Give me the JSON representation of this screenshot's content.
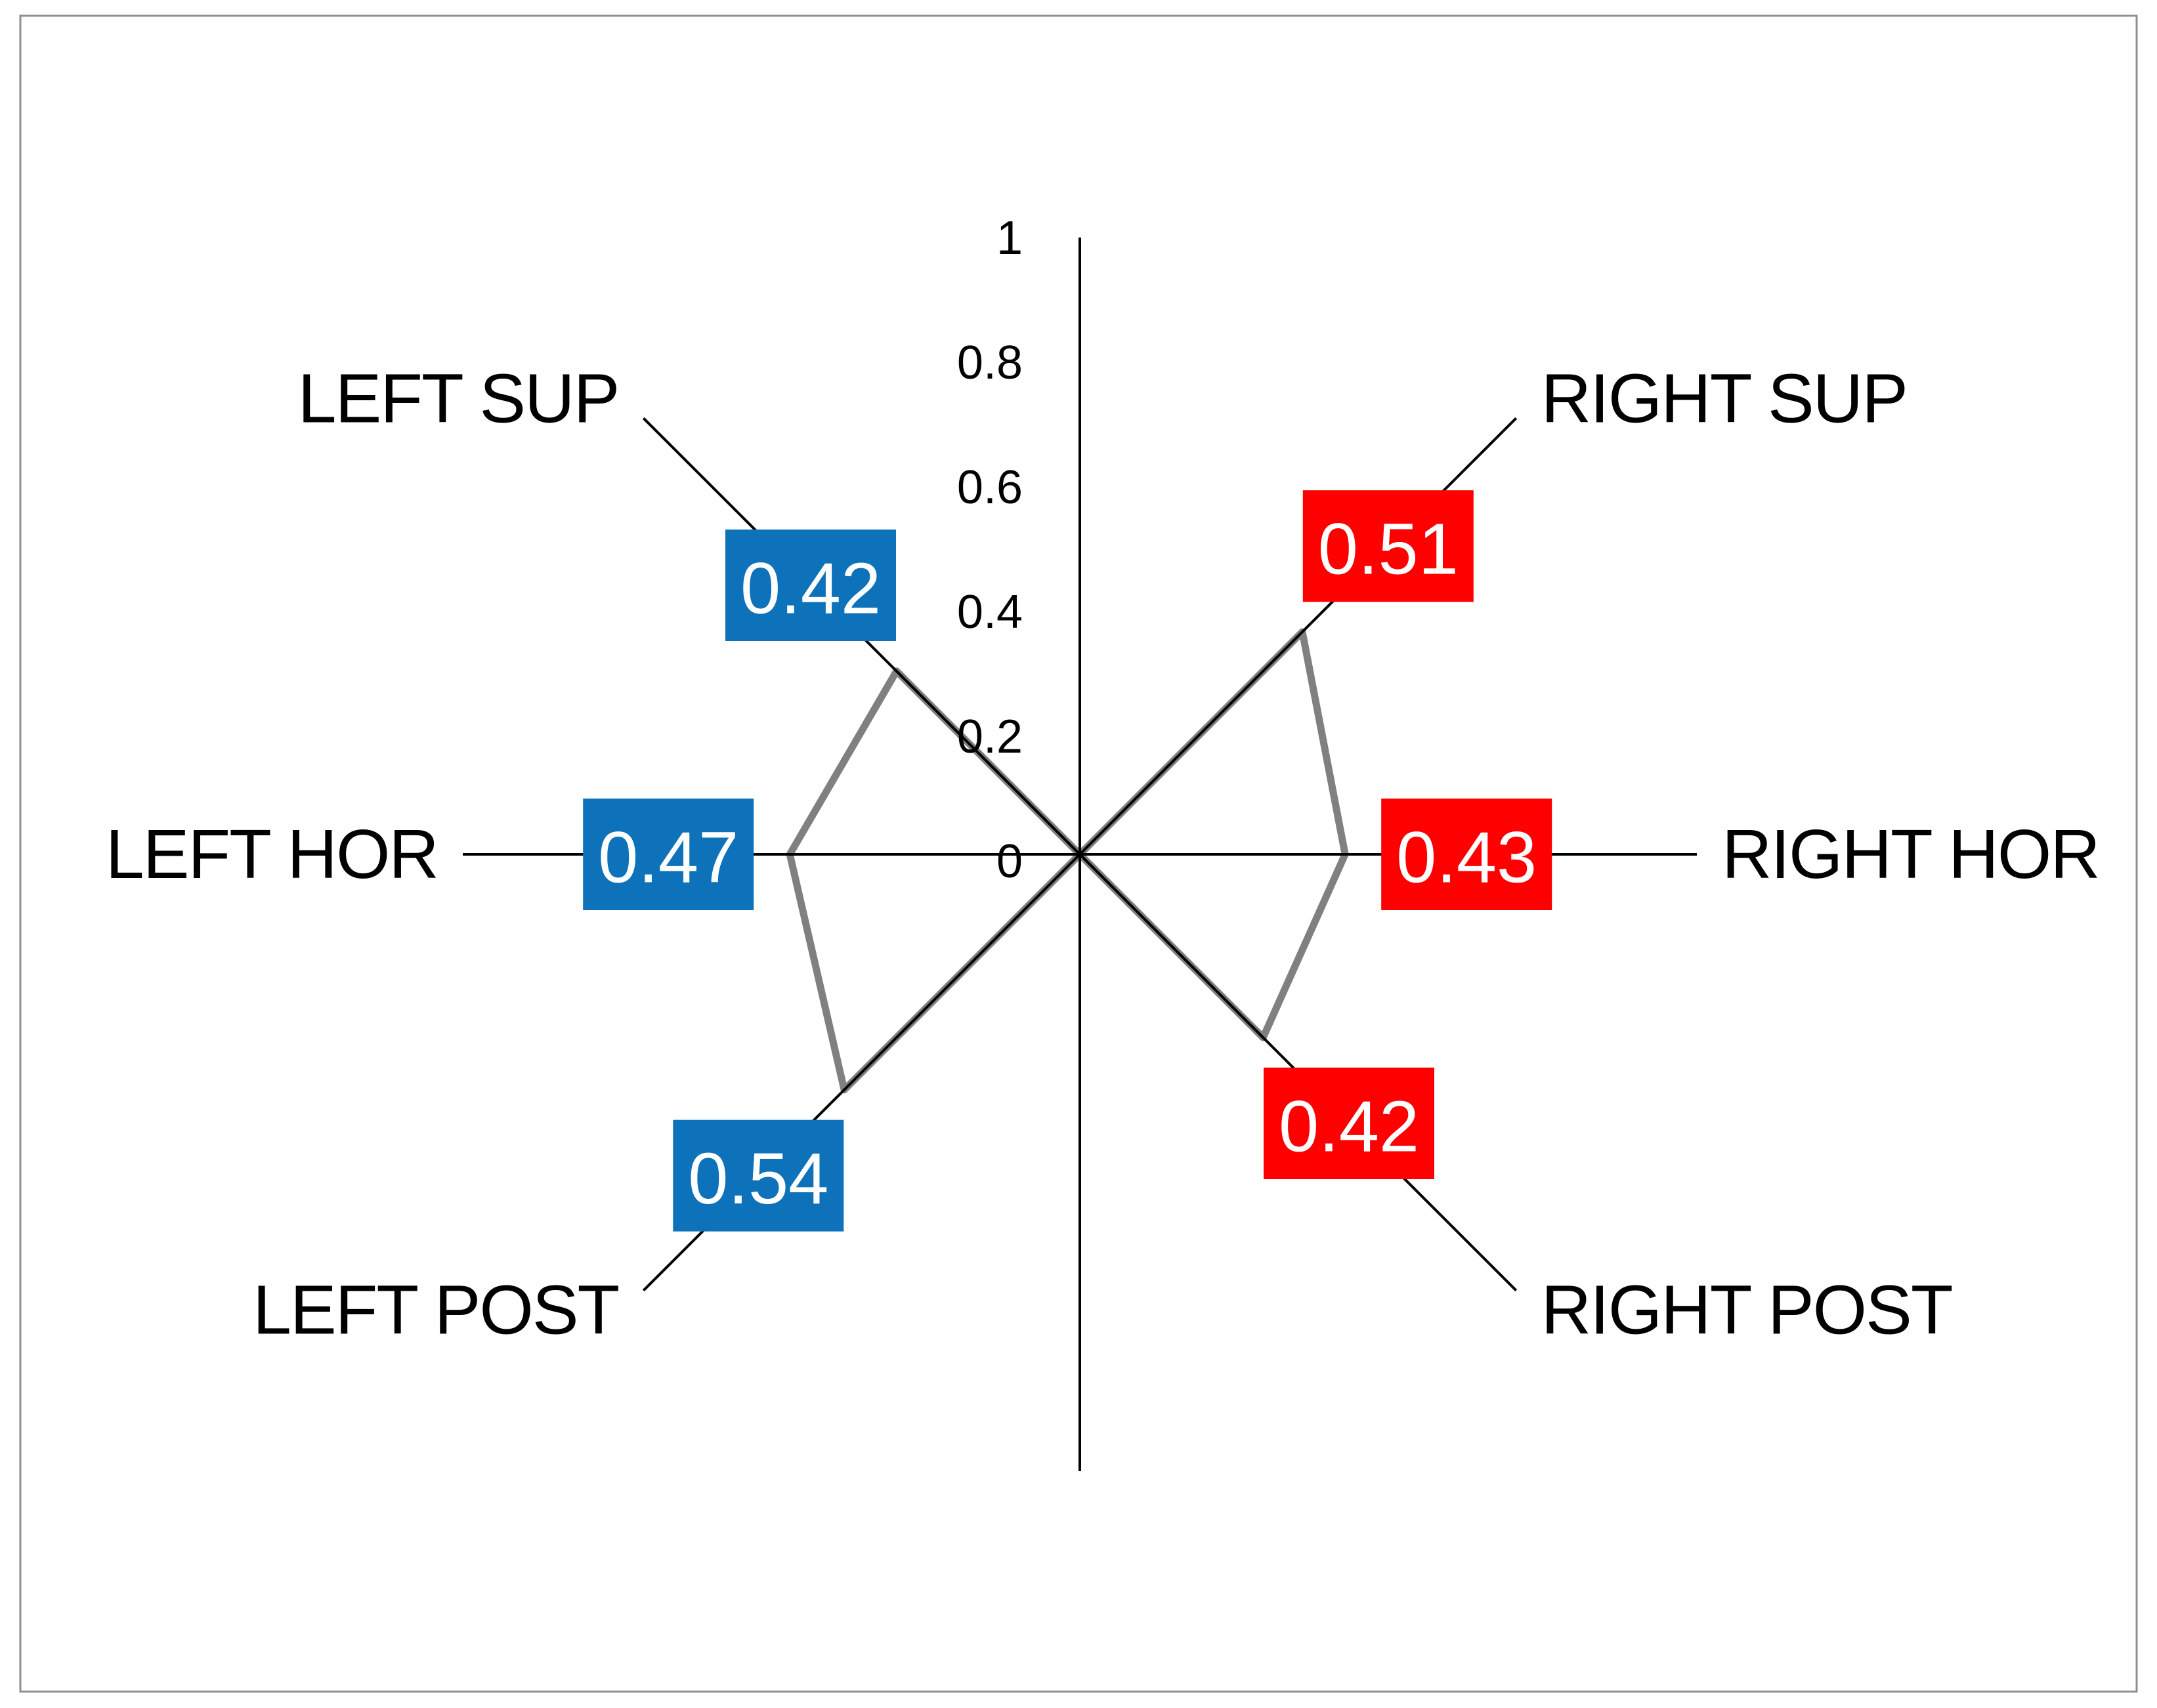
{
  "chart_data": {
    "type": "radar",
    "title": "",
    "axis_range": [
      0,
      1
    ],
    "grid": "spokes-only",
    "legend": "none",
    "background": "#ffffff",
    "frame_border_color": "#8f8f8f",
    "spoke_color": "#000000",
    "series_line_color": "#808080",
    "value_label_text_color": "#ffffff",
    "category_label_color": "#000000",
    "tick_label_color": "#000000",
    "left_accent_color": "#0e72ba",
    "right_accent_color": "#fe0000",
    "axis_ticks": [
      {
        "label": "0",
        "value": 0
      },
      {
        "label": "0.2",
        "value": 0.2
      },
      {
        "label": "0.4",
        "value": 0.4
      },
      {
        "label": "0.6",
        "value": 0.6
      },
      {
        "label": "0.8",
        "value": 0.8
      },
      {
        "label": "1",
        "value": 1
      }
    ],
    "categories": [
      {
        "name": "",
        "angle_deg": 90,
        "value": 0,
        "labeled": false
      },
      {
        "name": "RIGHT SUP",
        "angle_deg": 45,
        "value": 0.51,
        "value_label": "0.51",
        "label_box_color": "#fe0000",
        "labeled": true
      },
      {
        "name": "RIGHT HOR",
        "angle_deg": 0,
        "value": 0.43,
        "value_label": "0.43",
        "label_box_color": "#fe0000",
        "labeled": true
      },
      {
        "name": "RIGHT POST",
        "angle_deg": -45,
        "value": 0.42,
        "value_label": "0.42",
        "label_box_color": "#fe0000",
        "labeled": true
      },
      {
        "name": "",
        "angle_deg": -90,
        "value": 0,
        "labeled": false
      },
      {
        "name": "LEFT POST",
        "angle_deg": -135,
        "value": 0.54,
        "value_label": "0.54",
        "label_box_color": "#0e72ba",
        "labeled": true
      },
      {
        "name": "LEFT HOR",
        "angle_deg": 180,
        "value": 0.47,
        "value_label": "0.47",
        "label_box_color": "#0e72ba",
        "labeled": true
      },
      {
        "name": "LEFT SUP",
        "angle_deg": 135,
        "value": 0.42,
        "value_label": "0.42",
        "label_box_color": "#0e72ba",
        "labeled": true
      }
    ]
  }
}
